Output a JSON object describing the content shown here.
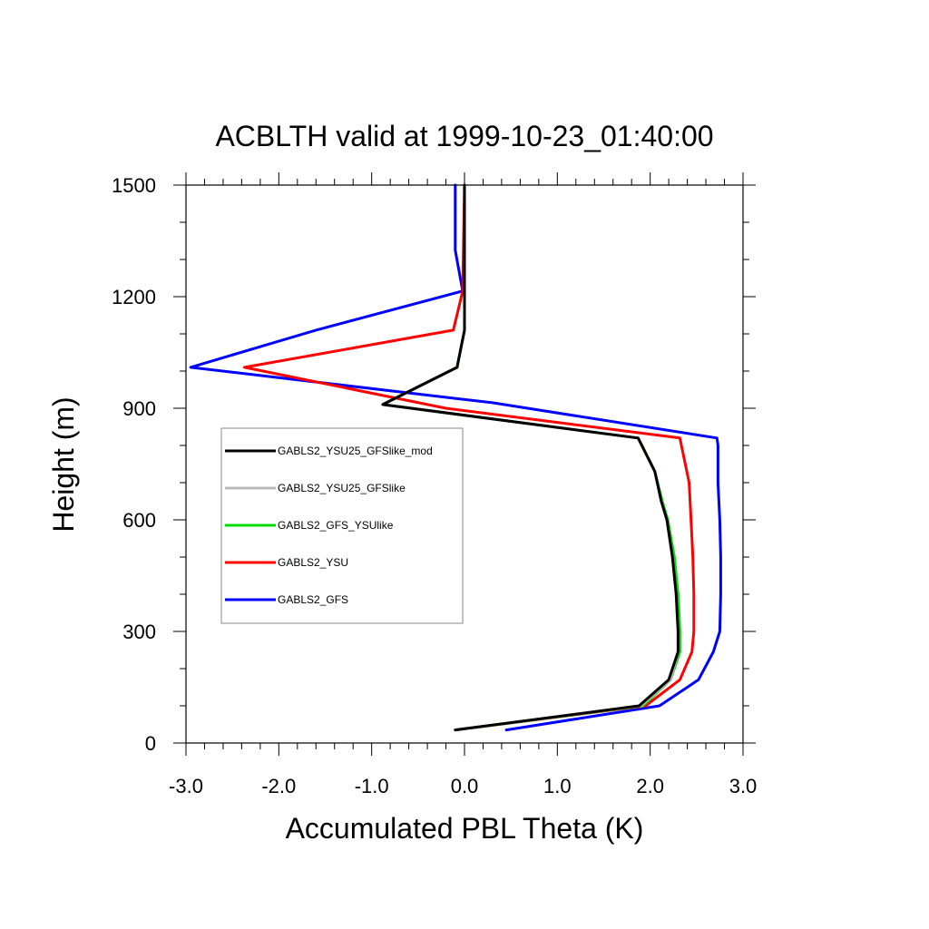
{
  "chart_data": {
    "type": "line",
    "title": "ACBLTH valid at 1999-10-23_01:40:00",
    "xlabel": "Accumulated PBL Theta (K)",
    "ylabel": "Height (m)",
    "xlim": [
      -3.0,
      3.0
    ],
    "ylim": [
      0,
      1500
    ],
    "xticks": [
      -3.0,
      -2.0,
      -1.0,
      0.0,
      1.0,
      2.0,
      3.0
    ],
    "xtick_labels": [
      "-3.0",
      "-2.0",
      "-1.0",
      "0.0",
      "1.0",
      "2.0",
      "3.0"
    ],
    "yticks": [
      0,
      300,
      600,
      900,
      1200,
      1500
    ],
    "ytick_labels": [
      "0",
      "300",
      "600",
      "900",
      "1200",
      "1500"
    ],
    "grid": false,
    "legend_position": "left",
    "series": [
      {
        "name": "GABLS2_GFS",
        "color": "#0000ff",
        "points": [
          [
            0.45,
            35
          ],
          [
            2.1,
            100
          ],
          [
            2.52,
            170
          ],
          [
            2.68,
            245
          ],
          [
            2.75,
            300
          ],
          [
            2.76,
            400
          ],
          [
            2.76,
            500
          ],
          [
            2.75,
            600
          ],
          [
            2.73,
            700
          ],
          [
            2.73,
            800
          ],
          [
            2.72,
            820
          ],
          [
            0.3,
            915
          ],
          [
            -2.95,
            1010
          ],
          [
            -1.6,
            1110
          ],
          [
            -0.02,
            1215
          ],
          [
            -0.1,
            1325
          ],
          [
            -0.1,
            1500
          ]
        ]
      },
      {
        "name": "GABLS2_YSU",
        "color": "#ff0000",
        "points": [
          [
            -0.1,
            35
          ],
          [
            1.95,
            100
          ],
          [
            2.32,
            170
          ],
          [
            2.45,
            245
          ],
          [
            2.47,
            300
          ],
          [
            2.47,
            400
          ],
          [
            2.46,
            500
          ],
          [
            2.44,
            600
          ],
          [
            2.42,
            700
          ],
          [
            2.37,
            760
          ],
          [
            2.32,
            820
          ],
          [
            -0.2,
            900
          ],
          [
            -2.37,
            1010
          ],
          [
            -0.12,
            1110
          ],
          [
            -0.02,
            1215
          ],
          [
            0.0,
            1500
          ]
        ]
      },
      {
        "name": "GABLS2_GFS_YSUlike",
        "color": "#00dd00",
        "points": [
          [
            -0.1,
            35
          ],
          [
            1.92,
            100
          ],
          [
            2.22,
            170
          ],
          [
            2.32,
            245
          ],
          [
            2.32,
            300
          ],
          [
            2.3,
            400
          ],
          [
            2.26,
            500
          ],
          [
            2.19,
            600
          ],
          [
            2.13,
            650
          ],
          [
            2.05,
            730
          ],
          [
            1.87,
            820
          ],
          [
            -0.88,
            910
          ],
          [
            -0.08,
            1010
          ],
          [
            0.0,
            1110
          ],
          [
            0.0,
            1500
          ]
        ]
      },
      {
        "name": "GABLS2_YSU25_GFSlike",
        "color": "#b8b8b8",
        "points": [
          [
            -0.1,
            35
          ],
          [
            1.9,
            100
          ],
          [
            2.22,
            170
          ],
          [
            2.3,
            245
          ],
          [
            2.3,
            300
          ],
          [
            2.28,
            400
          ],
          [
            2.24,
            500
          ],
          [
            2.18,
            600
          ],
          [
            2.12,
            650
          ],
          [
            2.05,
            730
          ],
          [
            1.87,
            820
          ],
          [
            -0.88,
            910
          ],
          [
            -0.08,
            1010
          ],
          [
            0.0,
            1110
          ],
          [
            0.0,
            1500
          ]
        ]
      },
      {
        "name": "GABLS2_YSU25_GFSlike_mod",
        "color": "#000000",
        "points": [
          [
            -0.1,
            35
          ],
          [
            1.88,
            100
          ],
          [
            2.2,
            170
          ],
          [
            2.3,
            245
          ],
          [
            2.3,
            300
          ],
          [
            2.28,
            400
          ],
          [
            2.24,
            500
          ],
          [
            2.18,
            600
          ],
          [
            2.12,
            650
          ],
          [
            2.05,
            730
          ],
          [
            1.87,
            820
          ],
          [
            -0.88,
            910
          ],
          [
            -0.08,
            1010
          ],
          [
            0.0,
            1110
          ],
          [
            0.0,
            1500
          ]
        ]
      }
    ],
    "legend": [
      {
        "name": "GABLS2_YSU25_GFSlike_mod",
        "color": "#000000"
      },
      {
        "name": "GABLS2_YSU25_GFSlike",
        "color": "#b8b8b8"
      },
      {
        "name": "GABLS2_GFS_YSUlike",
        "color": "#00dd00"
      },
      {
        "name": "GABLS2_YSU",
        "color": "#ff0000"
      },
      {
        "name": "GABLS2_GFS",
        "color": "#0000ff"
      }
    ]
  }
}
